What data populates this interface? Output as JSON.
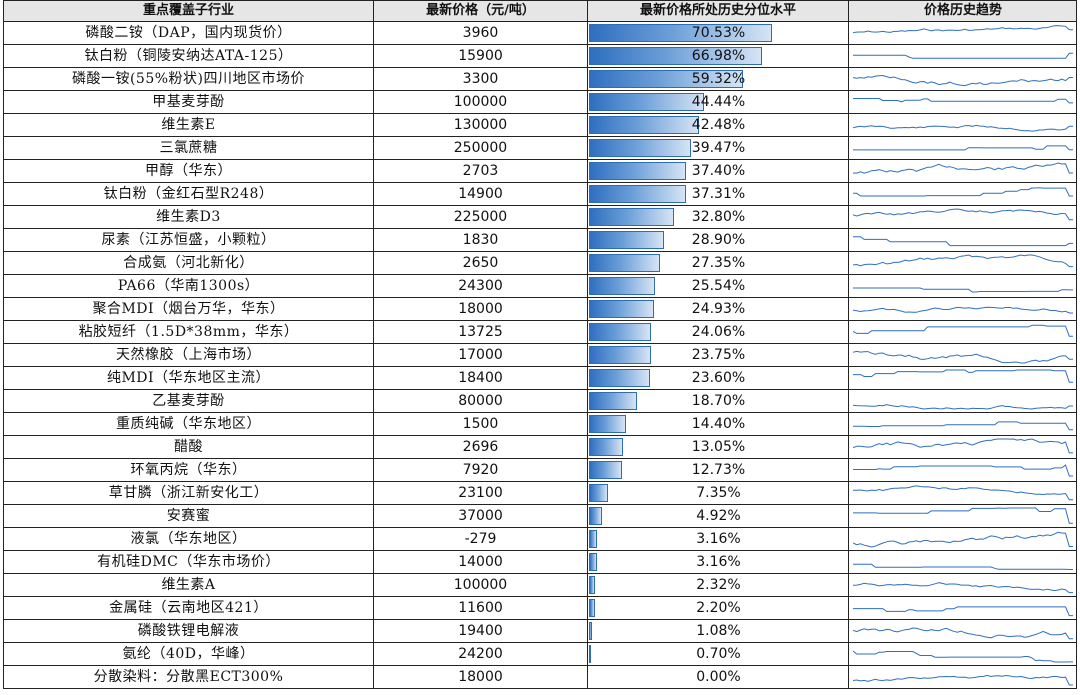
{
  "headers": {
    "name": "重点覆盖子行业",
    "price": "最新价格（元/吨）",
    "pct": "最新价格所处历史分位水平",
    "trend": "价格历史趋势"
  },
  "chart_data": {
    "type": "bar",
    "series_color": "#2f6fc0",
    "xlim": [
      0,
      100
    ],
    "rows": [
      {
        "name": "磷酸二铵（DAP，国内现货价）",
        "price": "3960",
        "pct": 70.53,
        "pct_label": "70.53%"
      },
      {
        "name": "钛白粉（铜陵安纳达ATA-125）",
        "price": "15900",
        "pct": 66.98,
        "pct_label": "66.98%"
      },
      {
        "name": "磷酸一铵(55%粉状)四川地区市场价",
        "price": "3300",
        "pct": 59.32,
        "pct_label": "59.32%"
      },
      {
        "name": "甲基麦芽酚",
        "price": "100000",
        "pct": 44.44,
        "pct_label": "44.44%"
      },
      {
        "name": "维生素E",
        "price": "130000",
        "pct": 42.48,
        "pct_label": "42.48%"
      },
      {
        "name": "三氯蔗糖",
        "price": "250000",
        "pct": 39.47,
        "pct_label": "39.47%"
      },
      {
        "name": "甲醇（华东）",
        "price": "2703",
        "pct": 37.4,
        "pct_label": "37.40%"
      },
      {
        "name": "钛白粉（金红石型R248）",
        "price": "14900",
        "pct": 37.31,
        "pct_label": "37.31%"
      },
      {
        "name": "维生素D3",
        "price": "225000",
        "pct": 32.8,
        "pct_label": "32.80%"
      },
      {
        "name": "尿素（江苏恒盛，小颗粒）",
        "price": "1830",
        "pct": 28.9,
        "pct_label": "28.90%"
      },
      {
        "name": "合成氨（河北新化）",
        "price": "2650",
        "pct": 27.35,
        "pct_label": "27.35%"
      },
      {
        "name": "PA66（华南1300s）",
        "price": "24300",
        "pct": 25.54,
        "pct_label": "25.54%"
      },
      {
        "name": "聚合MDI（烟台万华，华东）",
        "price": "18000",
        "pct": 24.93,
        "pct_label": "24.93%"
      },
      {
        "name": "粘胶短纤（1.5D*38mm，华东）",
        "price": "13725",
        "pct": 24.06,
        "pct_label": "24.06%"
      },
      {
        "name": "天然橡胶（上海市场）",
        "price": "17000",
        "pct": 23.75,
        "pct_label": "23.75%"
      },
      {
        "name": "纯MDI（华东地区主流）",
        "price": "18400",
        "pct": 23.6,
        "pct_label": "23.60%"
      },
      {
        "name": "乙基麦芽酚",
        "price": "80000",
        "pct": 18.7,
        "pct_label": "18.70%"
      },
      {
        "name": "重质纯碱（华东地区）",
        "price": "1500",
        "pct": 14.4,
        "pct_label": "14.40%"
      },
      {
        "name": "醋酸",
        "price": "2696",
        "pct": 13.05,
        "pct_label": "13.05%"
      },
      {
        "name": "环氧丙烷（华东）",
        "price": "7920",
        "pct": 12.73,
        "pct_label": "12.73%"
      },
      {
        "name": "草甘膦（浙江新安化工）",
        "price": "23100",
        "pct": 7.35,
        "pct_label": "7.35%"
      },
      {
        "name": "安赛蜜",
        "price": "37000",
        "pct": 4.92,
        "pct_label": "4.92%"
      },
      {
        "name": "液氯（华东地区）",
        "price": "-279",
        "pct": 3.16,
        "pct_label": "3.16%"
      },
      {
        "name": "有机硅DMC（华东市场价）",
        "price": "14000",
        "pct": 3.16,
        "pct_label": "3.16%"
      },
      {
        "name": "维生素A",
        "price": "100000",
        "pct": 2.32,
        "pct_label": "2.32%"
      },
      {
        "name": "金属硅（云南地区421）",
        "price": "11600",
        "pct": 2.2,
        "pct_label": "2.20%"
      },
      {
        "name": "磷酸铁锂电解液",
        "price": "19400",
        "pct": 1.08,
        "pct_label": "1.08%"
      },
      {
        "name": "氨纶（40D，华峰）",
        "price": "24200",
        "pct": 0.7,
        "pct_label": "0.70%"
      },
      {
        "name": "分散染料：分散黑ECT300%",
        "price": "18000",
        "pct": 0.0,
        "pct_label": "0.00%"
      }
    ]
  },
  "trend_line_color": "#2f6fc0"
}
